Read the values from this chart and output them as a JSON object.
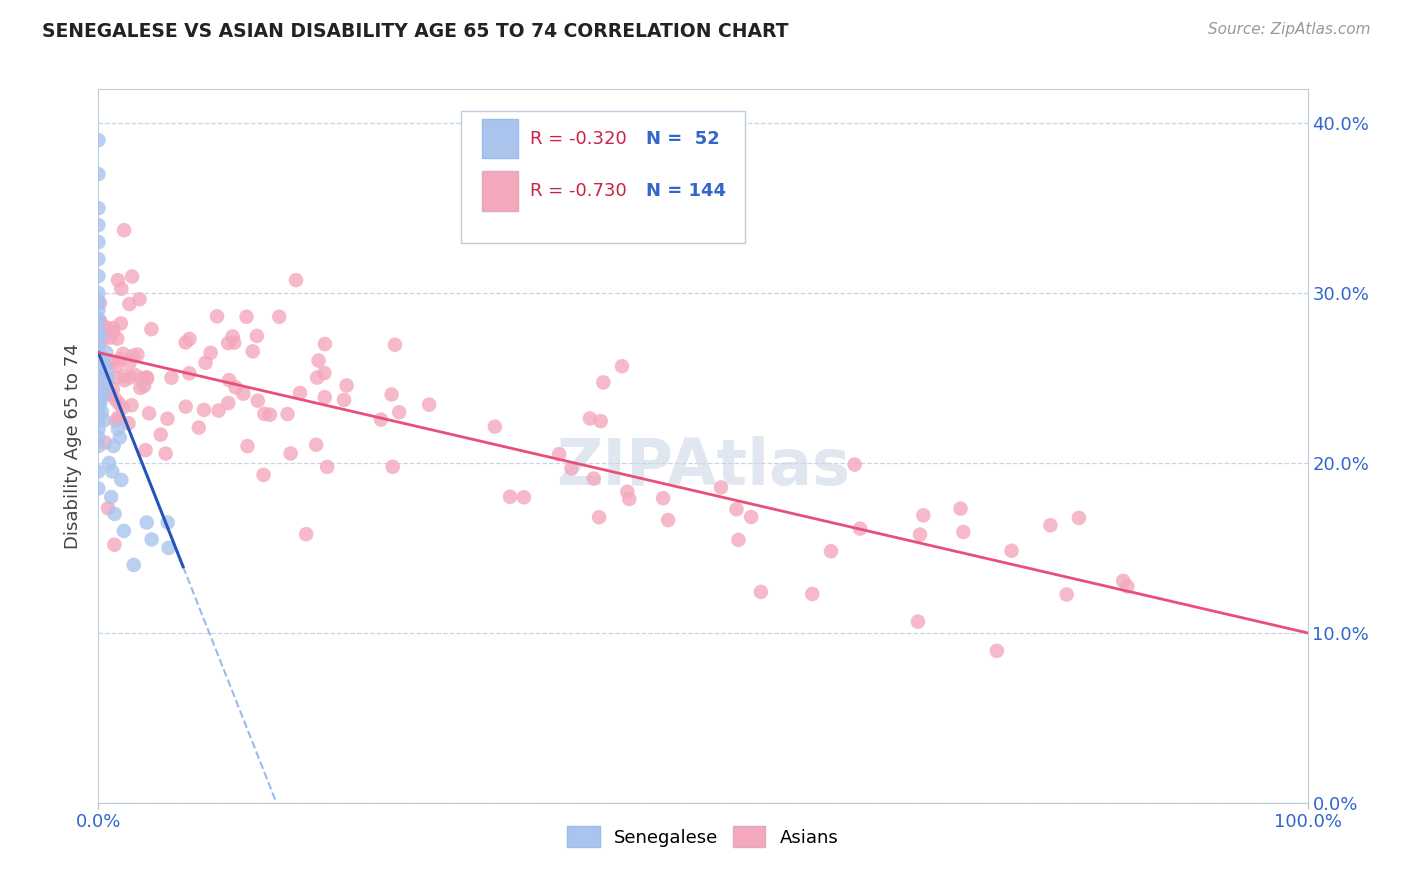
{
  "title": "SENEGALESE VS ASIAN DISABILITY AGE 65 TO 74 CORRELATION CHART",
  "source_text": "Source: ZipAtlas.com",
  "ylabel": "Disability Age 65 to 74",
  "xlim": [
    0.0,
    1.0
  ],
  "ylim": [
    0.0,
    0.42
  ],
  "xtick_labels": [
    "0.0%",
    "100.0%"
  ],
  "ytick_labels": [
    "0.0%",
    "10.0%",
    "20.0%",
    "30.0%",
    "40.0%"
  ],
  "ytick_values": [
    0.0,
    0.1,
    0.2,
    0.3,
    0.4
  ],
  "legend_r_blue": "R = -0.320",
  "legend_n_blue": "N =  52",
  "legend_r_pink": "R = -0.730",
  "legend_n_pink": "N = 144",
  "blue_color": "#aac4ee",
  "pink_color": "#f4a8bc",
  "blue_line_color": "#2255bb",
  "pink_line_color": "#e8507a",
  "blue_dashed_color": "#99bbee",
  "background_color": "#ffffff",
  "grid_color": "#c8d4e8",
  "watermark_color": "#ccd8e8",
  "legend_text_r_color": "#cc2244",
  "legend_text_n_color": "#3366cc",
  "axis_label_color": "#3366cc",
  "title_color": "#222222",
  "source_color": "#999999",
  "ylabel_color": "#444444",
  "sen_line_intercept": 0.265,
  "sen_line_slope": -1.8,
  "asi_line_intercept": 0.265,
  "asi_line_slope": -0.165
}
